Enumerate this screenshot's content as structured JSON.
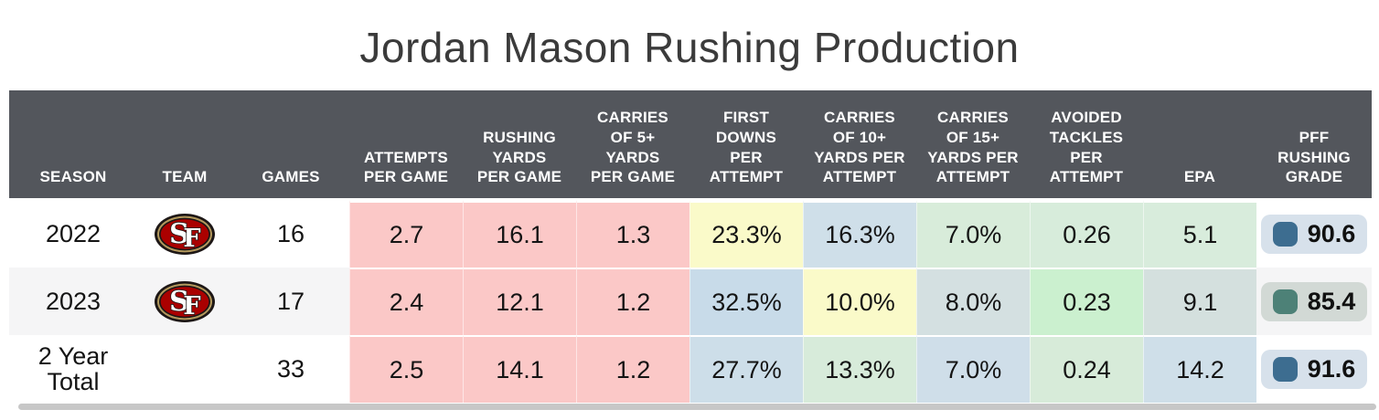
{
  "title": "Jordan Mason Rushing Production",
  "colors": {
    "header_bg": "#53565c",
    "stripe_bg": "#f5f5f6",
    "scrollbar": "#c7c7c7",
    "title_text": "#3b3b3b",
    "heat_red": "#fbc8c7",
    "heat_yellow": "#fafac9",
    "heat_blue": "#cddee9",
    "heat_green": "#d8ecda"
  },
  "table": {
    "columns": [
      {
        "key": "season",
        "label": "SEASON"
      },
      {
        "key": "team",
        "label": "TEAM"
      },
      {
        "key": "games",
        "label": "GAMES"
      },
      {
        "key": "attempts-per-game",
        "label": "ATTEMPTS\nPER GAME"
      },
      {
        "key": "rushing-yards-per-game",
        "label": "RUSHING\nYARDS\nPER GAME"
      },
      {
        "key": "carries-5plus-per-game",
        "label": "CARRIES\nOF 5+\nYARDS\nPER GAME"
      },
      {
        "key": "first-downs-per-attempt",
        "label": "FIRST\nDOWNS\nPER\nATTEMPT"
      },
      {
        "key": "carries-10plus-per-attempt",
        "label": "CARRIES\nOF 10+\nYARDS PER\nATTEMPT"
      },
      {
        "key": "carries-15plus-per-attempt",
        "label": "CARRIES\nOF 15+\nYARDS PER\nATTEMPT"
      },
      {
        "key": "avoided-tackles-per-attempt",
        "label": "AVOIDED\nTACKLES\nPER\nATTEMPT"
      },
      {
        "key": "epa",
        "label": "EPA"
      },
      {
        "key": "pff-rushing-grade",
        "label": "PFF\nRUSHING\nGRADE"
      }
    ],
    "rows": [
      {
        "season": "2022",
        "team_logo": "sf-49ers-logo",
        "games": "16",
        "striped": false,
        "stats": [
          {
            "value": "2.7",
            "bg": "#fbc8c7"
          },
          {
            "value": "16.1",
            "bg": "#fbc8c7"
          },
          {
            "value": "1.3",
            "bg": "#fbc8c7"
          },
          {
            "value": "23.3%",
            "bg": "#fafac9"
          },
          {
            "value": "16.3%",
            "bg": "#cfdfe9"
          },
          {
            "value": "7.0%",
            "bg": "#d8ecda"
          },
          {
            "value": "0.26",
            "bg": "#d7ecdb"
          },
          {
            "value": "5.1",
            "bg": "#d8ecdc"
          }
        ],
        "grade": {
          "value": "90.6",
          "bg": "#d7e1eb",
          "icon": "#3d6d90"
        }
      },
      {
        "season": "2023",
        "team_logo": "sf-49ers-logo",
        "games": "17",
        "striped": true,
        "stats": [
          {
            "value": "2.4",
            "bg": "#fbc8c7"
          },
          {
            "value": "12.1",
            "bg": "#fbc8c7"
          },
          {
            "value": "1.2",
            "bg": "#fbc8c7"
          },
          {
            "value": "32.5%",
            "bg": "#c8dbe9"
          },
          {
            "value": "10.0%",
            "bg": "#fafac9"
          },
          {
            "value": "8.0%",
            "bg": "#d4e0e1"
          },
          {
            "value": "0.23",
            "bg": "#cbf0cf"
          },
          {
            "value": "9.1",
            "bg": "#d4e0de"
          }
        ],
        "grade": {
          "value": "85.4",
          "bg": "#d2d9d5",
          "icon": "#4d8177"
        }
      },
      {
        "season": "2 Year Total",
        "team_logo": null,
        "games": "33",
        "striped": false,
        "stats": [
          {
            "value": "2.5",
            "bg": "#fbc8c7"
          },
          {
            "value": "14.1",
            "bg": "#fbc8c7"
          },
          {
            "value": "1.2",
            "bg": "#fbc8c7"
          },
          {
            "value": "27.7%",
            "bg": "#cddee9"
          },
          {
            "value": "13.3%",
            "bg": "#d7ebda"
          },
          {
            "value": "7.0%",
            "bg": "#cfdee9"
          },
          {
            "value": "0.24",
            "bg": "#d7ebd9"
          },
          {
            "value": "14.2",
            "bg": "#cfdfe9"
          }
        ],
        "grade": {
          "value": "91.6",
          "bg": "#d7e1eb",
          "icon": "#3d6d90"
        }
      }
    ]
  },
  "chart_data": {
    "type": "table",
    "title": "Jordan Mason Rushing Production",
    "columns": [
      "SEASON",
      "TEAM",
      "GAMES",
      "ATTEMPTS PER GAME",
      "RUSHING YARDS PER GAME",
      "CARRIES OF 5+ YARDS PER GAME",
      "FIRST DOWNS PER ATTEMPT",
      "CARRIES OF 10+ YARDS PER ATTEMPT",
      "CARRIES OF 15+ YARDS PER ATTEMPT",
      "AVOIDED TACKLES PER ATTEMPT",
      "EPA",
      "PFF RUSHING GRADE"
    ],
    "rows": [
      [
        "2022",
        "SF",
        16,
        2.7,
        16.1,
        1.3,
        "23.3%",
        "16.3%",
        "7.0%",
        0.26,
        5.1,
        90.6
      ],
      [
        "2023",
        "SF",
        17,
        2.4,
        12.1,
        1.2,
        "32.5%",
        "10.0%",
        "8.0%",
        0.23,
        9.1,
        85.4
      ],
      [
        "2 Year Total",
        "",
        33,
        2.5,
        14.1,
        1.2,
        "27.7%",
        "13.3%",
        "7.0%",
        0.24,
        14.2,
        91.6
      ]
    ],
    "layout_hints": "heatmap-colored cells: red=poor, yellow=average, blue/green=good; PFF grade shown in rounded badge"
  }
}
